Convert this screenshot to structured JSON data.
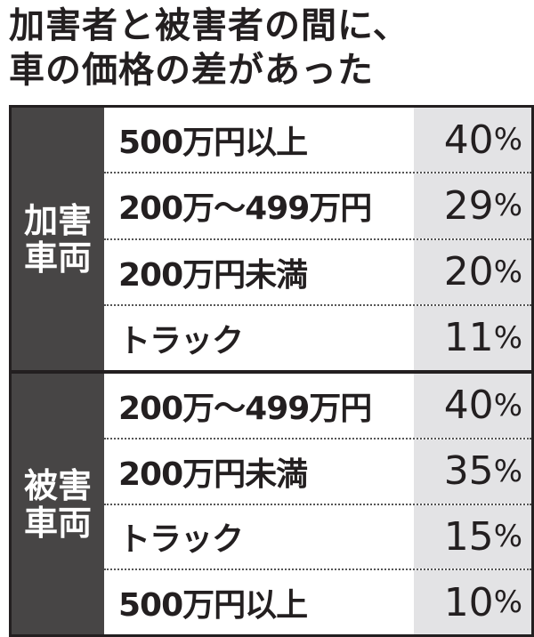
{
  "title": [
    "加害者と被害者の間に、",
    "車の価格の差があった"
  ],
  "chart_data": {
    "type": "table",
    "title": "加害者と被害者の間に、車の価格の差があった",
    "unit": "%",
    "groups": [
      {
        "label": "加害車両",
        "rows": [
          {
            "category": "500万円以上",
            "value": 40
          },
          {
            "category": "200万～499万円",
            "value": 29
          },
          {
            "category": "200万円未満",
            "value": 20
          },
          {
            "category": "トラック",
            "value": 11
          }
        ]
      },
      {
        "label": "被害車両",
        "rows": [
          {
            "category": "200万～499万円",
            "value": 40
          },
          {
            "category": "200万円未満",
            "value": 35
          },
          {
            "category": "トラック",
            "value": 15
          },
          {
            "category": "500万円以上",
            "value": 10
          }
        ]
      }
    ]
  },
  "colors": {
    "frame": "#231f20",
    "group_label_bg": "#474545",
    "value_bg": "#e3e3e5"
  }
}
